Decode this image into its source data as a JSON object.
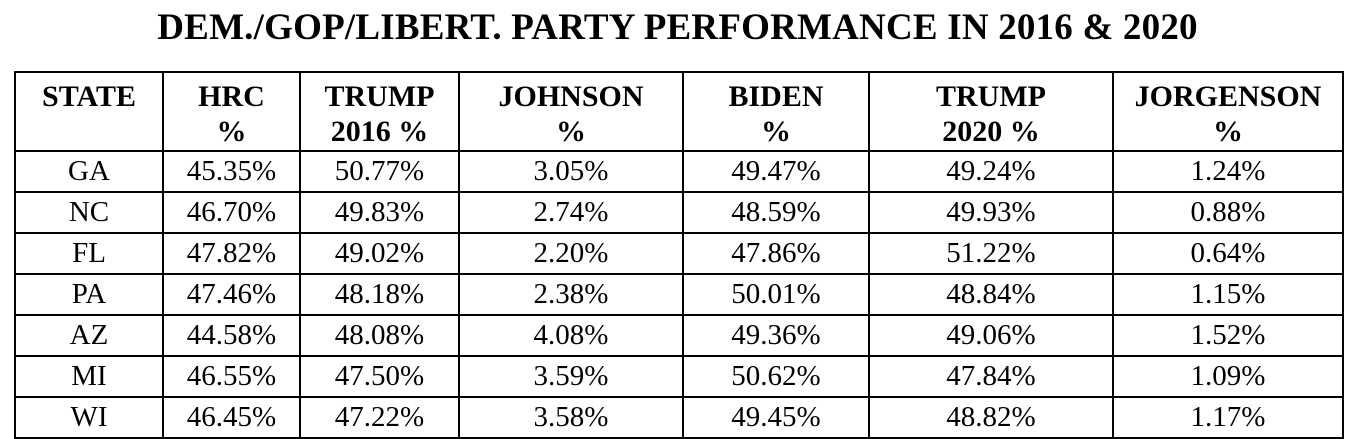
{
  "title": "DEM./GOP/LIBERT. PARTY PERFORMANCE IN 2016 & 2020",
  "columns": [
    {
      "line1": "STATE",
      "line2": ""
    },
    {
      "line1": "HRC",
      "line2": "%"
    },
    {
      "line1": "TRUMP",
      "line2": "2016 %"
    },
    {
      "line1": "JOHNSON",
      "line2": "%"
    },
    {
      "line1": "BIDEN",
      "line2": "%"
    },
    {
      "line1": "TRUMP",
      "line2": "2020 %"
    },
    {
      "line1": "JORGENSON",
      "line2": "%"
    }
  ],
  "rows": [
    [
      "GA",
      "45.35%",
      "50.77%",
      "3.05%",
      "49.47%",
      "49.24%",
      "1.24%"
    ],
    [
      "NC",
      "46.70%",
      "49.83%",
      "2.74%",
      "48.59%",
      "49.93%",
      "0.88%"
    ],
    [
      "FL",
      "47.82%",
      "49.02%",
      "2.20%",
      "47.86%",
      "51.22%",
      "0.64%"
    ],
    [
      "PA",
      "47.46%",
      "48.18%",
      "2.38%",
      "50.01%",
      "48.84%",
      "1.15%"
    ],
    [
      "AZ",
      "44.58%",
      "48.08%",
      "4.08%",
      "49.36%",
      "49.06%",
      "1.52%"
    ],
    [
      "MI",
      "46.55%",
      "47.50%",
      "3.59%",
      "50.62%",
      "47.84%",
      "1.09%"
    ],
    [
      "WI",
      "46.45%",
      "47.22%",
      "3.58%",
      "49.45%",
      "48.82%",
      "1.17%"
    ]
  ]
}
